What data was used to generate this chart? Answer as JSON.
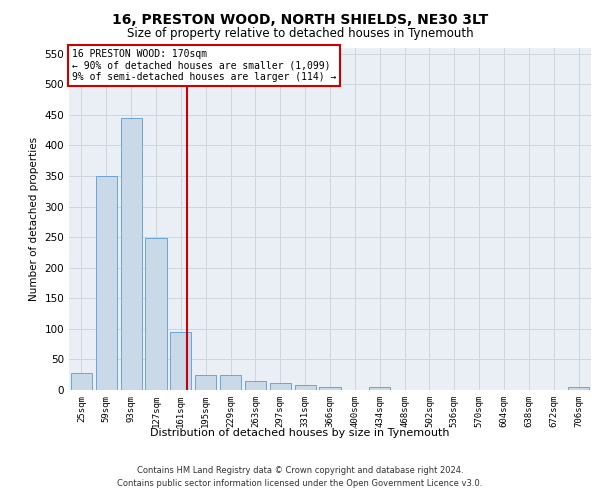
{
  "title": "16, PRESTON WOOD, NORTH SHIELDS, NE30 3LT",
  "subtitle": "Size of property relative to detached houses in Tynemouth",
  "xlabel": "Distribution of detached houses by size in Tynemouth",
  "ylabel": "Number of detached properties",
  "categories": [
    "25sqm",
    "59sqm",
    "93sqm",
    "127sqm",
    "161sqm",
    "195sqm",
    "229sqm",
    "263sqm",
    "297sqm",
    "331sqm",
    "366sqm",
    "400sqm",
    "434sqm",
    "468sqm",
    "502sqm",
    "536sqm",
    "570sqm",
    "604sqm",
    "638sqm",
    "672sqm",
    "706sqm"
  ],
  "bar_heights": [
    27,
    350,
    445,
    248,
    95,
    25,
    25,
    14,
    12,
    8,
    5,
    0,
    5,
    0,
    0,
    0,
    0,
    0,
    0,
    0,
    5
  ],
  "bar_color": "#c9d9e8",
  "bar_edge_color": "#5b9bd5",
  "vline_x": 4.25,
  "vline_color": "#cc0000",
  "annotation_text": "16 PRESTON WOOD: 170sqm\n← 90% of detached houses are smaller (1,099)\n9% of semi-detached houses are larger (114) →",
  "annotation_box_facecolor": "#ffffff",
  "annotation_box_edgecolor": "#cc0000",
  "ylim": [
    0,
    560
  ],
  "yticks": [
    0,
    50,
    100,
    150,
    200,
    250,
    300,
    350,
    400,
    450,
    500,
    550
  ],
  "grid_color": "#cdd5df",
  "bg_color": "#eaeff5",
  "footer1": "Contains HM Land Registry data © Crown copyright and database right 2024.",
  "footer2": "Contains public sector information licensed under the Open Government Licence v3.0."
}
